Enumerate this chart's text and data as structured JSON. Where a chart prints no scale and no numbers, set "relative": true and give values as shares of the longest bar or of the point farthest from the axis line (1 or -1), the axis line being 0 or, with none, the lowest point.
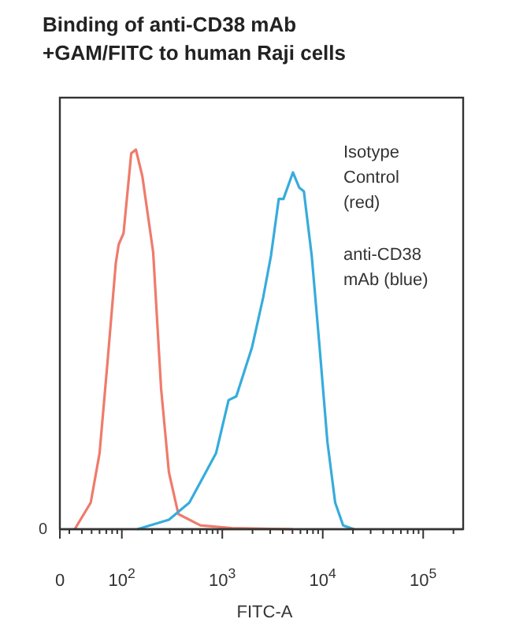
{
  "chart_data": {
    "type": "line",
    "title": "Binding of anti-CD38 mAb +GAM/FITC to human Raji cells",
    "xlabel": "FITC-A",
    "log": "x",
    "relative": true,
    "grid": false,
    "line_style": "solid",
    "xlim": [
      0,
      250000
    ],
    "xticks": [
      {
        "value": 0,
        "label": "0"
      },
      {
        "value": 30,
        "label": null
      },
      {
        "value": 40,
        "label": null
      },
      {
        "value": 50,
        "label": null
      },
      {
        "value": 60,
        "label": null
      },
      {
        "value": 70,
        "label": null
      },
      {
        "value": 80,
        "label": null
      },
      {
        "value": 90,
        "label": null
      },
      {
        "value": 100,
        "label": "10$^{2}$"
      },
      {
        "value": 200,
        "label": null
      },
      {
        "value": 300,
        "label": null
      },
      {
        "value": 400,
        "label": null
      },
      {
        "value": 500,
        "label": null
      },
      {
        "value": 600,
        "label": null
      },
      {
        "value": 700,
        "label": null
      },
      {
        "value": 800,
        "label": null
      },
      {
        "value": 900,
        "label": null
      },
      {
        "value": 1000,
        "label": "10$^{3}$"
      },
      {
        "value": 2000,
        "label": null
      },
      {
        "value": 3000,
        "label": null
      },
      {
        "value": 4000,
        "label": null
      },
      {
        "value": 5000,
        "label": null
      },
      {
        "value": 6000,
        "label": null
      },
      {
        "value": 7000,
        "label": null
      },
      {
        "value": 8000,
        "label": null
      },
      {
        "value": 9000,
        "label": null
      },
      {
        "value": 10000,
        "label": "10$^{4}$"
      },
      {
        "value": 20000,
        "label": null
      },
      {
        "value": 30000,
        "label": null
      },
      {
        "value": 40000,
        "label": null
      },
      {
        "value": 50000,
        "label": null
      },
      {
        "value": 60000,
        "label": null
      },
      {
        "value": 70000,
        "label": null
      },
      {
        "value": 80000,
        "label": null
      },
      {
        "value": 90000,
        "label": null
      },
      {
        "value": 100000,
        "label": "10$^{5}$"
      },
      {
        "value": 200000,
        "label": null
      }
    ],
    "series": [
      {
        "color": "#ef7b6b",
        "x": [
          34,
          49,
          60,
          72,
          87,
          93,
          104,
          124,
          138,
          160,
          205,
          246,
          294,
          365,
          605,
          1240,
          5000
        ],
        "values": [
          0,
          0.07,
          0.2,
          0.44,
          0.7,
          0.75,
          0.78,
          0.99,
          1,
          0.93,
          0.73,
          0.37,
          0.15,
          0.04,
          0.01,
          0.003,
          0
        ]
      },
      {
        "color": "#36acdc",
        "x": [
          143,
          294,
          470,
          866,
          1155,
          1380,
          1980,
          2550,
          3050,
          3650,
          4060,
          5050,
          5830,
          6490,
          7770,
          9300,
          11130,
          13300,
          15960,
          20500
        ],
        "values": [
          0,
          0.025,
          0.07,
          0.2,
          0.34,
          0.35,
          0.48,
          0.61,
          0.72,
          0.87,
          0.87,
          0.94,
          0.9,
          0.89,
          0.72,
          0.48,
          0.23,
          0.07,
          0.01,
          0
        ]
      }
    ],
    "annotations": [
      "Isotype Control (red)",
      "anti-CD38 mAb (blue)",
      "0"
    ]
  }
}
